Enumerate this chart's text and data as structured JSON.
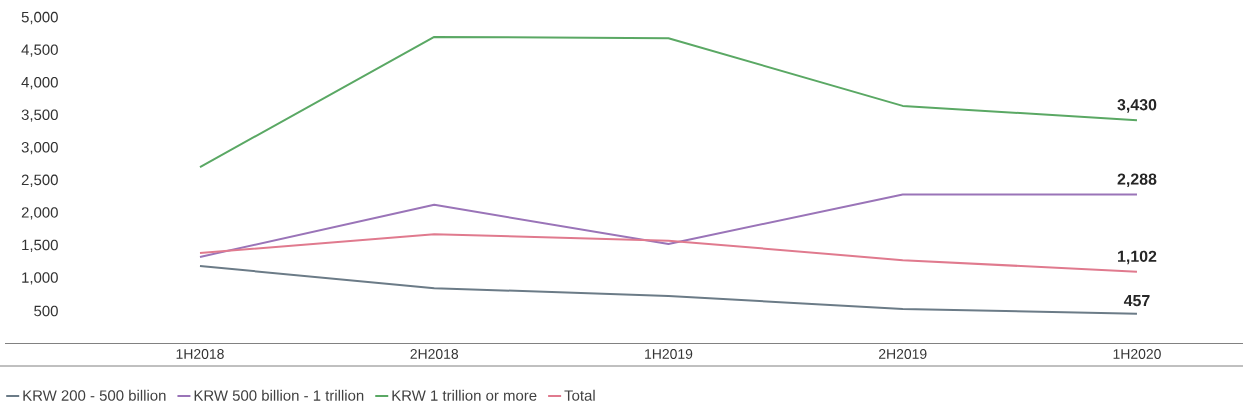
{
  "chart_data": {
    "type": "line",
    "categories": [
      "1H2018",
      "2H2018",
      "1H2019",
      "2H2019",
      "1H2020"
    ],
    "series": [
      {
        "name": "KRW 200 - 500 billion",
        "color": "#6b7b87",
        "values": [
          1190,
          850,
          730,
          530,
          457
        ],
        "value_labels": [
          null,
          null,
          null,
          null,
          "457"
        ]
      },
      {
        "name": "KRW 500 billion - 1 trillion",
        "color": "#9a74b8",
        "values": [
          1330,
          2130,
          1530,
          2288,
          2288
        ],
        "value_labels": [
          null,
          null,
          null,
          null,
          "2,288"
        ]
      },
      {
        "name": "KRW 1 trillion or more",
        "color": "#5aa864",
        "values": [
          2710,
          4710,
          4690,
          3650,
          3430
        ],
        "value_labels": [
          null,
          null,
          null,
          null,
          "3,430"
        ]
      },
      {
        "name": "Total",
        "color": "#e07a8e",
        "values": [
          1390,
          1680,
          1580,
          1280,
          1102
        ],
        "value_labels": [
          null,
          null,
          null,
          null,
          "1,102"
        ]
      }
    ],
    "ylim": [
      0,
      5000
    ],
    "yticks": [
      {
        "value": 500,
        "label": "500"
      },
      {
        "value": 1000,
        "label": "1,000"
      },
      {
        "value": 1500,
        "label": "1,500"
      },
      {
        "value": 2000,
        "label": "2,000"
      },
      {
        "value": 2500,
        "label": "2,500"
      },
      {
        "value": 3000,
        "label": "3,000"
      },
      {
        "value": 3500,
        "label": "3,500"
      },
      {
        "value": 4000,
        "label": "4,000"
      },
      {
        "value": 4500,
        "label": "4,500"
      },
      {
        "value": 5000,
        "label": "5,000"
      }
    ],
    "legend": "bottom"
  }
}
